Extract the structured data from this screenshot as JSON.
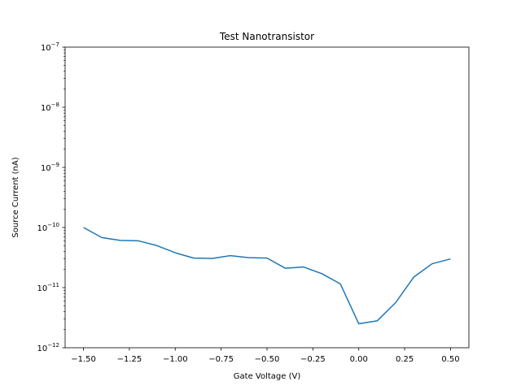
{
  "chart_data": {
    "type": "line",
    "title": "Test Nanotransistor",
    "xlabel": "Gate Voltage (V)",
    "ylabel": "Source Current (nA)",
    "yscale": "log",
    "xlim": [
      -1.6,
      0.6
    ],
    "ylim": [
      1e-12,
      1e-07
    ],
    "grid": false,
    "x_ticks": [
      {
        "value": -1.5,
        "label": "−1.50"
      },
      {
        "value": -1.25,
        "label": "−1.25"
      },
      {
        "value": -1.0,
        "label": "−1.00"
      },
      {
        "value": -0.75,
        "label": "−0.75"
      },
      {
        "value": -0.5,
        "label": "−0.50"
      },
      {
        "value": -0.25,
        "label": "−0.25"
      },
      {
        "value": 0.0,
        "label": "0.00"
      },
      {
        "value": 0.25,
        "label": "0.25"
      },
      {
        "value": 0.5,
        "label": "0.50"
      }
    ],
    "y_ticks": [
      {
        "value": 1e-12,
        "base": "10",
        "exp": "−12"
      },
      {
        "value": 1e-11,
        "base": "10",
        "exp": "−11"
      },
      {
        "value": 1e-10,
        "base": "10",
        "exp": "−10"
      },
      {
        "value": 1e-09,
        "base": "10",
        "exp": "−9"
      },
      {
        "value": 1e-08,
        "base": "10",
        "exp": "−8"
      },
      {
        "value": 1e-07,
        "base": "10",
        "exp": "−7"
      }
    ],
    "series": [
      {
        "color": "#1f77b4",
        "x": [
          -1.5,
          -1.4,
          -1.3,
          -1.2,
          -1.1,
          -1.0,
          -0.9,
          -0.8,
          -0.7,
          -0.6,
          -0.5,
          -0.4,
          -0.3,
          -0.2,
          -0.1,
          0.0,
          0.1,
          0.2,
          0.3,
          0.4,
          0.5
        ],
        "y": [
          1e-10,
          6.8e-11,
          6.1e-11,
          6e-11,
          5e-11,
          3.8e-11,
          3.1e-11,
          3.05e-11,
          3.4e-11,
          3.15e-11,
          3.1e-11,
          2.1e-11,
          2.2e-11,
          1.7e-11,
          1.15e-11,
          2.5e-12,
          2.8e-12,
          5.6e-12,
          1.5e-11,
          2.5e-11,
          3e-11
        ]
      }
    ]
  }
}
